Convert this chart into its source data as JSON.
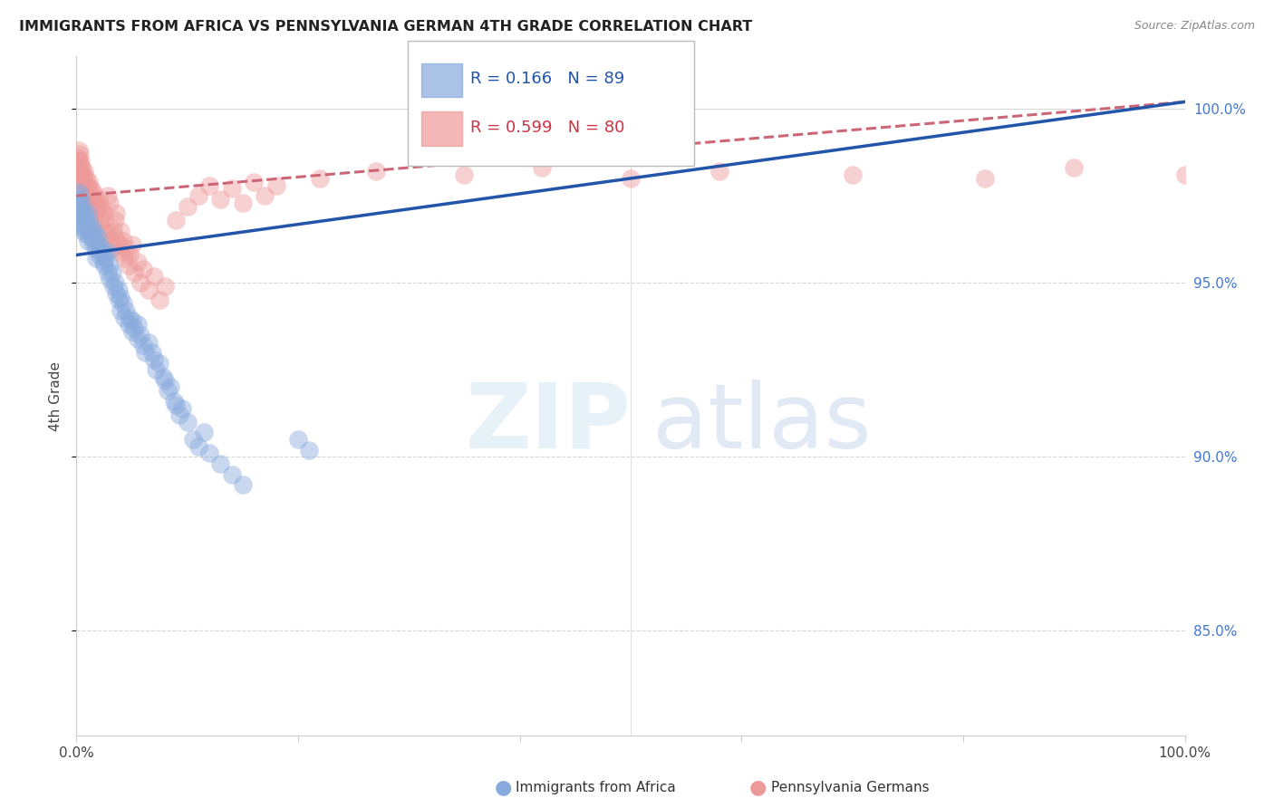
{
  "title": "IMMIGRANTS FROM AFRICA VS PENNSYLVANIA GERMAN 4TH GRADE CORRELATION CHART",
  "source": "Source: ZipAtlas.com",
  "ylabel": "4th Grade",
  "legend_blue_label": "Immigrants from Africa",
  "legend_pink_label": "Pennsylvania Germans",
  "blue_R": 0.166,
  "blue_N": 89,
  "pink_R": 0.599,
  "pink_N": 80,
  "blue_color": "#88AADD",
  "pink_color": "#EE9999",
  "blue_line_color": "#2255AA",
  "pink_line_color": "#CC6677",
  "blue_trend": [
    0.0,
    1.0,
    95.8,
    100.2
  ],
  "pink_trend": [
    0.0,
    1.0,
    97.5,
    100.2
  ],
  "xlim": [
    0.0,
    1.0
  ],
  "ylim": [
    82.0,
    101.5
  ],
  "yticks": [
    85.0,
    90.0,
    95.0,
    100.0
  ],
  "ytick_labels": [
    "85.0%",
    "90.0%",
    "95.0%",
    "100.0%"
  ],
  "blue_scatter": [
    [
      0.001,
      97.4
    ],
    [
      0.001,
      97.1
    ],
    [
      0.001,
      96.9
    ],
    [
      0.002,
      97.6
    ],
    [
      0.002,
      97.3
    ],
    [
      0.002,
      97.0
    ],
    [
      0.003,
      97.5
    ],
    [
      0.003,
      97.2
    ],
    [
      0.003,
      96.8
    ],
    [
      0.004,
      97.1
    ],
    [
      0.004,
      96.7
    ],
    [
      0.005,
      97.3
    ],
    [
      0.005,
      97.0
    ],
    [
      0.006,
      96.9
    ],
    [
      0.006,
      96.6
    ],
    [
      0.007,
      97.0
    ],
    [
      0.007,
      96.5
    ],
    [
      0.008,
      96.8
    ],
    [
      0.008,
      96.4
    ],
    [
      0.009,
      96.7
    ],
    [
      0.01,
      97.0
    ],
    [
      0.01,
      96.5
    ],
    [
      0.01,
      96.2
    ],
    [
      0.011,
      96.8
    ],
    [
      0.012,
      96.5
    ],
    [
      0.013,
      96.3
    ],
    [
      0.014,
      96.6
    ],
    [
      0.015,
      96.4
    ],
    [
      0.015,
      96.1
    ],
    [
      0.016,
      96.5
    ],
    [
      0.017,
      96.2
    ],
    [
      0.018,
      96.0
    ],
    [
      0.018,
      95.7
    ],
    [
      0.019,
      96.3
    ],
    [
      0.02,
      96.1
    ],
    [
      0.02,
      95.8
    ],
    [
      0.022,
      95.9
    ],
    [
      0.023,
      96.0
    ],
    [
      0.024,
      95.6
    ],
    [
      0.025,
      95.8
    ],
    [
      0.025,
      95.5
    ],
    [
      0.026,
      95.7
    ],
    [
      0.028,
      95.9
    ],
    [
      0.028,
      95.3
    ],
    [
      0.03,
      95.5
    ],
    [
      0.03,
      95.1
    ],
    [
      0.032,
      95.3
    ],
    [
      0.033,
      94.9
    ],
    [
      0.035,
      95.0
    ],
    [
      0.036,
      94.7
    ],
    [
      0.038,
      94.8
    ],
    [
      0.038,
      94.5
    ],
    [
      0.04,
      94.6
    ],
    [
      0.04,
      94.2
    ],
    [
      0.042,
      94.4
    ],
    [
      0.043,
      94.0
    ],
    [
      0.045,
      94.2
    ],
    [
      0.047,
      93.8
    ],
    [
      0.048,
      94.0
    ],
    [
      0.05,
      93.9
    ],
    [
      0.05,
      93.6
    ],
    [
      0.052,
      93.7
    ],
    [
      0.055,
      93.8
    ],
    [
      0.055,
      93.4
    ],
    [
      0.058,
      93.5
    ],
    [
      0.06,
      93.2
    ],
    [
      0.062,
      93.0
    ],
    [
      0.065,
      93.3
    ],
    [
      0.068,
      93.0
    ],
    [
      0.07,
      92.8
    ],
    [
      0.072,
      92.5
    ],
    [
      0.075,
      92.7
    ],
    [
      0.078,
      92.3
    ],
    [
      0.08,
      92.2
    ],
    [
      0.082,
      91.9
    ],
    [
      0.085,
      92.0
    ],
    [
      0.088,
      91.6
    ],
    [
      0.09,
      91.5
    ],
    [
      0.093,
      91.2
    ],
    [
      0.095,
      91.4
    ],
    [
      0.1,
      91.0
    ],
    [
      0.105,
      90.5
    ],
    [
      0.11,
      90.3
    ],
    [
      0.115,
      90.7
    ],
    [
      0.12,
      90.1
    ],
    [
      0.13,
      89.8
    ],
    [
      0.14,
      89.5
    ],
    [
      0.15,
      89.2
    ],
    [
      0.2,
      90.5
    ],
    [
      0.21,
      90.2
    ]
  ],
  "pink_scatter": [
    [
      0.001,
      98.6
    ],
    [
      0.001,
      98.3
    ],
    [
      0.002,
      98.8
    ],
    [
      0.002,
      98.5
    ],
    [
      0.002,
      98.1
    ],
    [
      0.003,
      98.7
    ],
    [
      0.003,
      98.4
    ],
    [
      0.003,
      98.0
    ],
    [
      0.004,
      98.5
    ],
    [
      0.004,
      98.2
    ],
    [
      0.005,
      98.3
    ],
    [
      0.005,
      98.0
    ],
    [
      0.006,
      98.1
    ],
    [
      0.006,
      97.8
    ],
    [
      0.007,
      98.2
    ],
    [
      0.007,
      97.9
    ],
    [
      0.008,
      97.7
    ],
    [
      0.009,
      98.0
    ],
    [
      0.009,
      97.5
    ],
    [
      0.01,
      97.8
    ],
    [
      0.01,
      97.6
    ],
    [
      0.011,
      97.9
    ],
    [
      0.012,
      97.4
    ],
    [
      0.013,
      97.7
    ],
    [
      0.014,
      97.2
    ],
    [
      0.015,
      97.6
    ],
    [
      0.015,
      97.3
    ],
    [
      0.016,
      97.5
    ],
    [
      0.017,
      97.0
    ],
    [
      0.018,
      97.3
    ],
    [
      0.019,
      97.1
    ],
    [
      0.02,
      97.4
    ],
    [
      0.021,
      96.8
    ],
    [
      0.022,
      97.2
    ],
    [
      0.023,
      96.6
    ],
    [
      0.025,
      97.0
    ],
    [
      0.025,
      96.5
    ],
    [
      0.026,
      96.8
    ],
    [
      0.028,
      96.4
    ],
    [
      0.028,
      97.5
    ],
    [
      0.03,
      96.2
    ],
    [
      0.03,
      97.3
    ],
    [
      0.032,
      96.0
    ],
    [
      0.033,
      96.5
    ],
    [
      0.035,
      96.8
    ],
    [
      0.035,
      96.3
    ],
    [
      0.036,
      97.0
    ],
    [
      0.038,
      96.1
    ],
    [
      0.04,
      96.5
    ],
    [
      0.04,
      95.9
    ],
    [
      0.042,
      96.2
    ],
    [
      0.043,
      95.7
    ],
    [
      0.045,
      96.0
    ],
    [
      0.047,
      95.5
    ],
    [
      0.048,
      95.8
    ],
    [
      0.05,
      96.1
    ],
    [
      0.052,
      95.3
    ],
    [
      0.055,
      95.6
    ],
    [
      0.058,
      95.0
    ],
    [
      0.06,
      95.4
    ],
    [
      0.065,
      94.8
    ],
    [
      0.07,
      95.2
    ],
    [
      0.075,
      94.5
    ],
    [
      0.08,
      94.9
    ],
    [
      0.09,
      96.8
    ],
    [
      0.1,
      97.2
    ],
    [
      0.11,
      97.5
    ],
    [
      0.12,
      97.8
    ],
    [
      0.13,
      97.4
    ],
    [
      0.14,
      97.7
    ],
    [
      0.15,
      97.3
    ],
    [
      0.16,
      97.9
    ],
    [
      0.17,
      97.5
    ],
    [
      0.18,
      97.8
    ],
    [
      0.22,
      98.0
    ],
    [
      0.27,
      98.2
    ],
    [
      0.35,
      98.1
    ],
    [
      0.42,
      98.3
    ],
    [
      0.5,
      98.0
    ],
    [
      0.58,
      98.2
    ],
    [
      0.7,
      98.1
    ],
    [
      0.82,
      98.0
    ],
    [
      0.9,
      98.3
    ],
    [
      1.0,
      98.1
    ]
  ]
}
